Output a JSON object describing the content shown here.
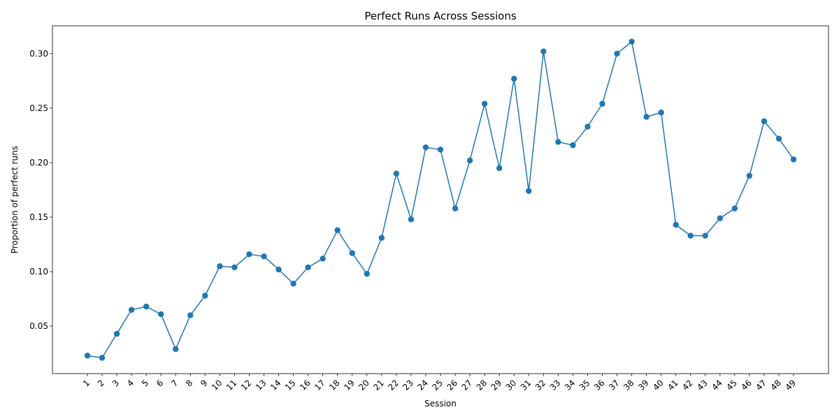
{
  "chart_data": {
    "type": "line",
    "title": "Perfect Runs Across Sessions",
    "xlabel": "Session",
    "ylabel": "Proportion of perfect runs",
    "categories": [
      "1",
      "2",
      "3",
      "4",
      "5",
      "6",
      "7",
      "8",
      "9",
      "10",
      "11",
      "12",
      "13",
      "14",
      "15",
      "16",
      "17",
      "18",
      "19",
      "20",
      "21",
      "22",
      "23",
      "24",
      "25",
      "26",
      "27",
      "28",
      "29",
      "30",
      "31",
      "32",
      "33",
      "34",
      "35",
      "36",
      "37",
      "38",
      "39",
      "40",
      "41",
      "42",
      "43",
      "44",
      "45",
      "46",
      "47",
      "48",
      "49"
    ],
    "series": [
      {
        "values": [
          0.023,
          0.021,
          0.043,
          0.065,
          0.068,
          0.061,
          0.029,
          0.06,
          0.078,
          0.105,
          0.104,
          0.116,
          0.114,
          0.102,
          0.089,
          0.104,
          0.112,
          0.138,
          0.117,
          0.098,
          0.131,
          0.19,
          0.148,
          0.214,
          0.212,
          0.158,
          0.202,
          0.254,
          0.195,
          0.277,
          0.174,
          0.302,
          0.219,
          0.216,
          0.233,
          0.254,
          0.3,
          0.311,
          0.242,
          0.246,
          0.143,
          0.133,
          0.133,
          0.149,
          0.158,
          0.188,
          0.238,
          0.222,
          0.203
        ],
        "color": "#1f77b4"
      }
    ],
    "yticks": [
      "0.05",
      "0.10",
      "0.15",
      "0.20",
      "0.25",
      "0.30"
    ],
    "ylim": [
      0.0065,
      0.3255
    ],
    "grid": false,
    "legend": "none"
  }
}
